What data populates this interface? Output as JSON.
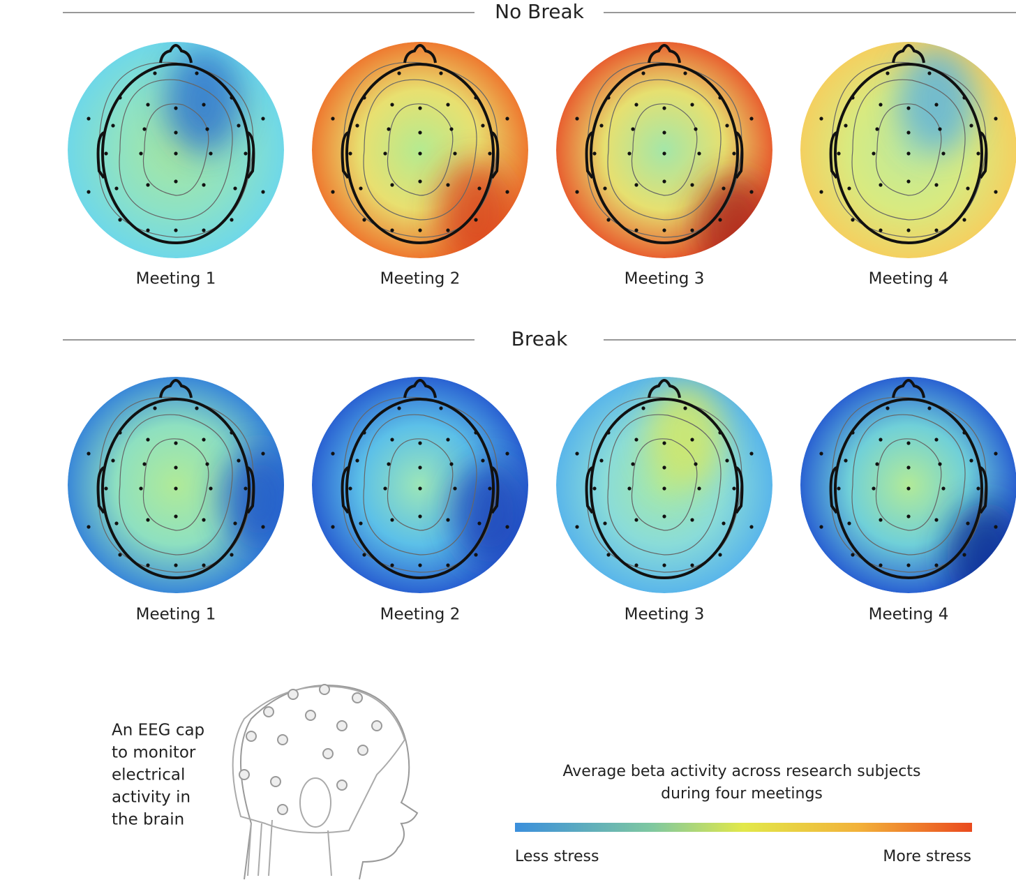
{
  "sections": [
    {
      "title": "No Break",
      "panels": [
        "Meeting 1",
        "Meeting 2",
        "Meeting 3",
        "Meeting 4"
      ]
    },
    {
      "title": "Break",
      "panels": [
        "Meeting 1",
        "Meeting 2",
        "Meeting 3",
        "Meeting 4"
      ]
    }
  ],
  "caption": [
    "An EEG cap",
    "to monitor",
    "electrical",
    "activity in",
    "the brain"
  ],
  "legend": {
    "title": [
      "Average beta activity across research subjects",
      "during four meetings"
    ],
    "low": "Less stress",
    "high": "More stress"
  }
}
